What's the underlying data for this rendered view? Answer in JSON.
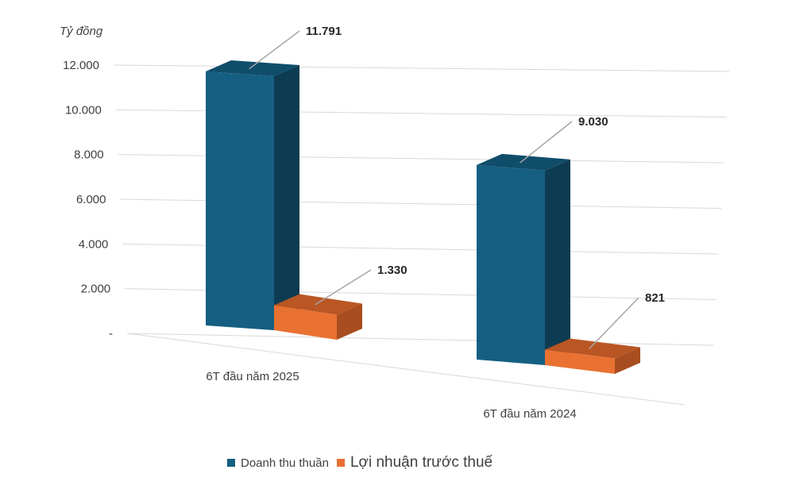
{
  "chart_data": {
    "type": "bar",
    "unit_label": "Tỷ đồng",
    "categories": [
      "6T đầu năm 2025",
      "6T đầu năm 2024"
    ],
    "series": [
      {
        "name": "Doanh thu thuần",
        "values": [
          11791,
          9030
        ],
        "labels": [
          "11.791",
          "9.030"
        ],
        "color_front": "#155f82",
        "color_side": "#0d3c52",
        "color_top": "#0f4d6b"
      },
      {
        "name": "Lợi nhuận trước thuế",
        "values": [
          1330,
          821
        ],
        "labels": [
          "1.330",
          "821"
        ],
        "color_front": "#e97132",
        "color_side": "#a84d1f",
        "color_top": "#b95624"
      }
    ],
    "yticks": [
      "-",
      "2.000",
      "4.000",
      "6.000",
      "8.000",
      "10.000",
      "12.000"
    ],
    "ylim": [
      0,
      12000
    ],
    "grid": true,
    "legend_position": "bottom"
  }
}
